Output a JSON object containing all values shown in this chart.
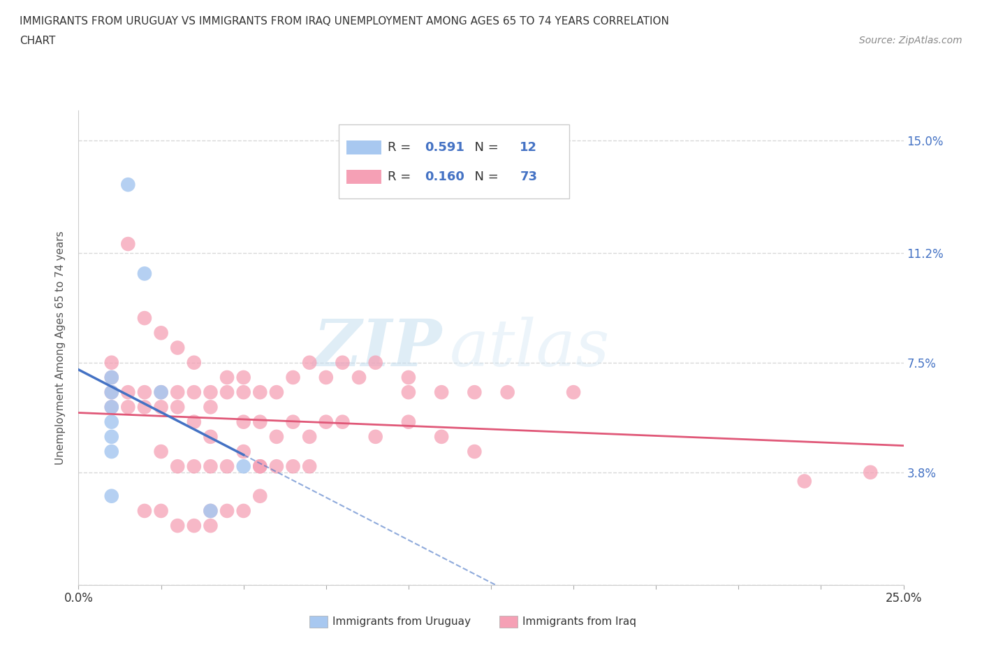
{
  "title_line1": "IMMIGRANTS FROM URUGUAY VS IMMIGRANTS FROM IRAQ UNEMPLOYMENT AMONG AGES 65 TO 74 YEARS CORRELATION",
  "title_line2": "CHART",
  "source_text": "Source: ZipAtlas.com",
  "ylabel": "Unemployment Among Ages 65 to 74 years",
  "xlim": [
    0.0,
    0.25
  ],
  "ylim": [
    0.0,
    0.16
  ],
  "yticks": [
    0.0,
    0.038,
    0.075,
    0.112,
    0.15
  ],
  "ytick_labels": [
    "",
    "3.8%",
    "7.5%",
    "11.2%",
    "15.0%"
  ],
  "xticks": [
    0.0,
    0.025,
    0.05,
    0.075,
    0.1,
    0.125,
    0.15,
    0.175,
    0.2,
    0.225,
    0.25
  ],
  "xtick_labels_show": {
    "0.0": "0.0%",
    "0.25": "25.0%"
  },
  "legend_label1": "Immigrants from Uruguay",
  "legend_label2": "Immigrants from Iraq",
  "r1": "0.591",
  "n1": "12",
  "r2": "0.160",
  "n2": "73",
  "color_uruguay": "#a8c8f0",
  "color_iraq": "#f5a0b5",
  "trendline_color_uruguay": "#4472c4",
  "trendline_color_iraq": "#e05878",
  "watermark_zip": "ZIP",
  "watermark_atlas": "atlas",
  "background_color": "#ffffff",
  "grid_color": "#d8d8d8",
  "uruguay_x": [
    0.015,
    0.02,
    0.025,
    0.01,
    0.01,
    0.01,
    0.01,
    0.01,
    0.01,
    0.01,
    0.04,
    0.05
  ],
  "uruguay_y": [
    0.135,
    0.105,
    0.065,
    0.07,
    0.065,
    0.06,
    0.055,
    0.05,
    0.045,
    0.03,
    0.025,
    0.04
  ],
  "iraq_x": [
    0.015,
    0.02,
    0.025,
    0.03,
    0.035,
    0.01,
    0.01,
    0.01,
    0.01,
    0.015,
    0.015,
    0.02,
    0.02,
    0.025,
    0.025,
    0.03,
    0.03,
    0.035,
    0.04,
    0.04,
    0.045,
    0.045,
    0.05,
    0.05,
    0.055,
    0.06,
    0.065,
    0.07,
    0.075,
    0.08,
    0.085,
    0.09,
    0.1,
    0.1,
    0.11,
    0.12,
    0.13,
    0.15,
    0.22,
    0.24,
    0.035,
    0.04,
    0.05,
    0.055,
    0.06,
    0.065,
    0.07,
    0.075,
    0.08,
    0.09,
    0.1,
    0.11,
    0.12,
    0.055,
    0.06,
    0.065,
    0.07,
    0.025,
    0.03,
    0.035,
    0.04,
    0.045,
    0.05,
    0.055,
    0.02,
    0.025,
    0.03,
    0.035,
    0.04,
    0.04,
    0.045,
    0.05,
    0.055
  ],
  "iraq_y": [
    0.115,
    0.09,
    0.085,
    0.08,
    0.075,
    0.075,
    0.07,
    0.065,
    0.06,
    0.065,
    0.06,
    0.065,
    0.06,
    0.065,
    0.06,
    0.065,
    0.06,
    0.065,
    0.065,
    0.06,
    0.07,
    0.065,
    0.07,
    0.065,
    0.065,
    0.065,
    0.07,
    0.075,
    0.07,
    0.075,
    0.07,
    0.075,
    0.07,
    0.065,
    0.065,
    0.065,
    0.065,
    0.065,
    0.035,
    0.038,
    0.055,
    0.05,
    0.055,
    0.055,
    0.05,
    0.055,
    0.05,
    0.055,
    0.055,
    0.05,
    0.055,
    0.05,
    0.045,
    0.04,
    0.04,
    0.04,
    0.04,
    0.045,
    0.04,
    0.04,
    0.04,
    0.04,
    0.045,
    0.04,
    0.025,
    0.025,
    0.02,
    0.02,
    0.02,
    0.025,
    0.025,
    0.025,
    0.03
  ]
}
